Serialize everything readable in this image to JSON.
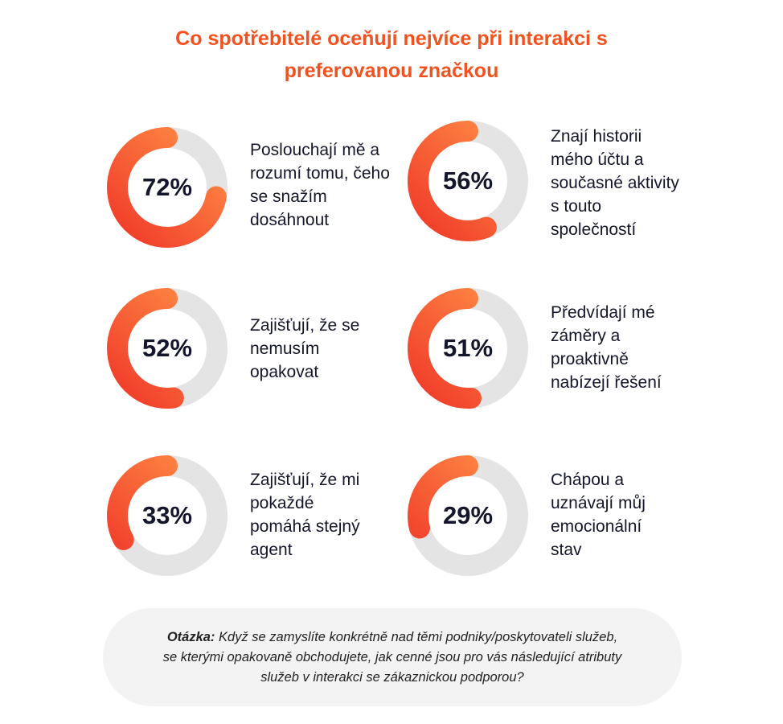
{
  "title": {
    "line1": "Co spotřebitelé oceňují nejvíce při interakci s",
    "line2": "preferovanou značkou"
  },
  "chart_data": {
    "type": "donut",
    "items": [
      {
        "value": 72,
        "label_text": "72%",
        "label": "Poslouchají mě a rozumí tomu, čeho se snažím dosáhnout"
      },
      {
        "value": 56,
        "label_text": "56%",
        "label": "Znají historii mého účtu a současné aktivity s touto společností"
      },
      {
        "value": 52,
        "label_text": "52%",
        "label": "Zajišťují, že se nemusím opakovat"
      },
      {
        "value": 51,
        "label_text": "51%",
        "label": "Předvídají mé záměry a proaktivně nabízejí řešení"
      },
      {
        "value": 33,
        "label_text": "33%",
        "label": "Zajišťují, že mi pokaždé pomáhá stejný agent"
      },
      {
        "value": 29,
        "label_text": "29%",
        "label": "Chápou a uznávají můj emocionální stav"
      }
    ],
    "colors": {
      "accent_start": "#f03a2a",
      "accent_end": "#ff8f45",
      "track": "#e4e4e4"
    }
  },
  "note": {
    "prefix": "Otázka:",
    "text": " Když se zamyslíte konkrétně nad těmi podniky/poskytovateli služeb, se kterými opakovaně obchodujete, jak cenné jsou pro vás následující atributy služeb v interakci se zákaznickou podporou?"
  }
}
